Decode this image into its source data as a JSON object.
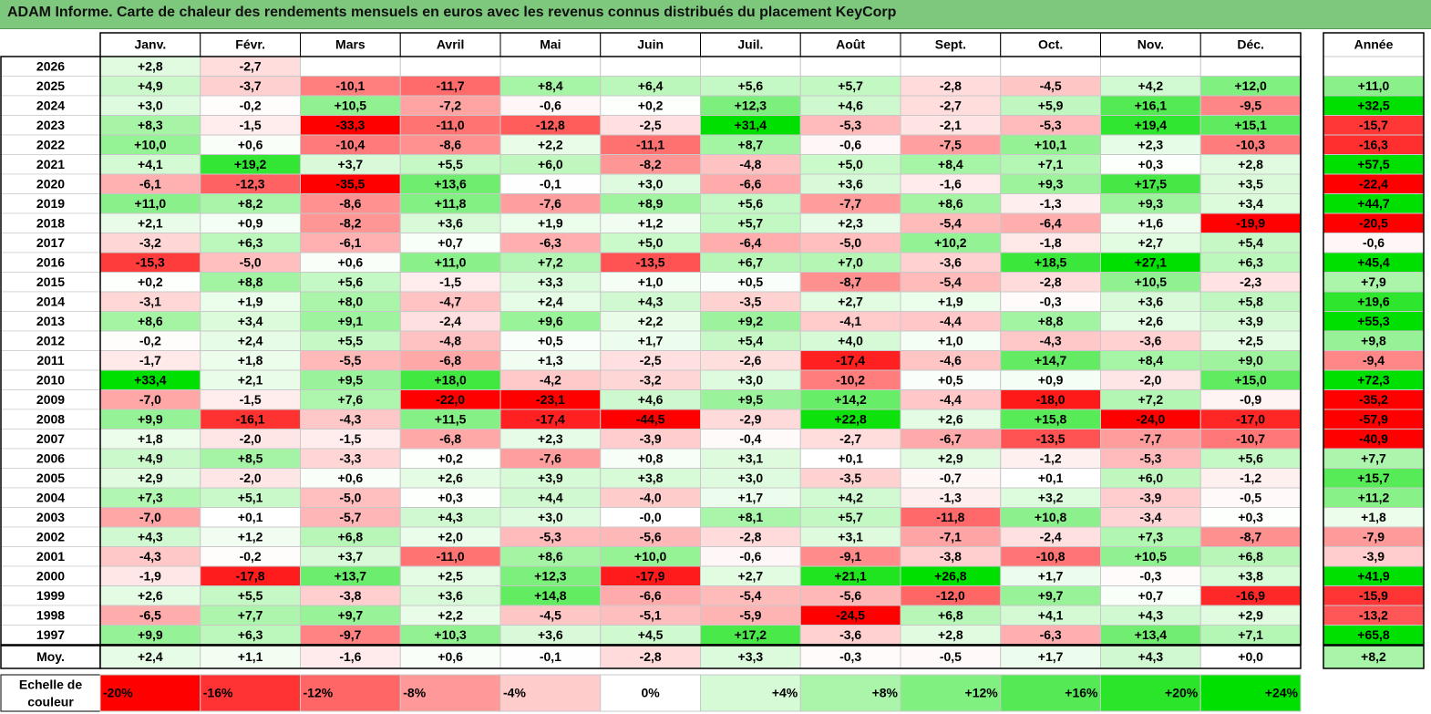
{
  "title": "ADAM Informe. Carte de chaleur des rendements mensuels en euros avec les revenus connus distribués du placement KeyCorp",
  "chart_data": {
    "type": "heatmap",
    "columns": [
      "Janv.",
      "Févr.",
      "Mars",
      "Avril",
      "Mai",
      "Juin",
      "Juil.",
      "Août",
      "Sept.",
      "Oct.",
      "Nov.",
      "Déc."
    ],
    "year_column_header": "Année",
    "rows": [
      {
        "year": "2026",
        "values": [
          "+2,8",
          "-2,7",
          "",
          "",
          "",
          "",
          "",
          "",
          "",
          "",
          "",
          ""
        ],
        "annual": ""
      },
      {
        "year": "2025",
        "values": [
          "+4,9",
          "-3,7",
          "-10,1",
          "-11,7",
          "+8,4",
          "+6,4",
          "+5,6",
          "+5,7",
          "-2,8",
          "-4,5",
          "+4,2",
          "+12,0"
        ],
        "annual": "+11,0"
      },
      {
        "year": "2024",
        "values": [
          "+3,0",
          "-0,2",
          "+10,5",
          "-7,2",
          "-0,6",
          "+0,2",
          "+12,3",
          "+4,6",
          "-2,7",
          "+5,9",
          "+16,1",
          "-9,5"
        ],
        "annual": "+32,5"
      },
      {
        "year": "2023",
        "values": [
          "+8,3",
          "-1,5",
          "-33,3",
          "-11,0",
          "-12,8",
          "-2,5",
          "+31,4",
          "-5,3",
          "-2,1",
          "-5,3",
          "+19,4",
          "+15,1"
        ],
        "annual": "-15,7"
      },
      {
        "year": "2022",
        "values": [
          "+10,0",
          "+0,6",
          "-10,4",
          "-8,6",
          "+2,2",
          "-11,1",
          "+8,7",
          "-0,6",
          "-7,5",
          "+10,1",
          "+2,3",
          "-10,3"
        ],
        "annual": "-16,3"
      },
      {
        "year": "2021",
        "values": [
          "+4,1",
          "+19,2",
          "+3,7",
          "+5,5",
          "+6,0",
          "-8,2",
          "-4,8",
          "+5,0",
          "+8,4",
          "+7,1",
          "+0,3",
          "+2,8"
        ],
        "annual": "+57,5"
      },
      {
        "year": "2020",
        "values": [
          "-6,1",
          "-12,3",
          "-35,5",
          "+13,6",
          "-0,1",
          "+3,0",
          "-6,6",
          "+3,6",
          "-1,6",
          "+9,3",
          "+17,5",
          "+3,5"
        ],
        "annual": "-22,4"
      },
      {
        "year": "2019",
        "values": [
          "+11,0",
          "+8,2",
          "-8,6",
          "+11,8",
          "-7,6",
          "+8,9",
          "+5,6",
          "-7,7",
          "+8,6",
          "-1,3",
          "+9,3",
          "+3,4"
        ],
        "annual": "+44,7"
      },
      {
        "year": "2018",
        "values": [
          "+2,1",
          "+0,9",
          "-8,2",
          "+3,6",
          "+1,9",
          "+1,2",
          "+5,7",
          "+2,3",
          "-5,4",
          "-6,4",
          "+1,6",
          "-19,9"
        ],
        "annual": "-20,5"
      },
      {
        "year": "2017",
        "values": [
          "-3,2",
          "+6,3",
          "-6,1",
          "+0,7",
          "-6,3",
          "+5,0",
          "-6,4",
          "-5,0",
          "+10,2",
          "-1,8",
          "+2,7",
          "+5,4"
        ],
        "annual": "-0,6"
      },
      {
        "year": "2016",
        "values": [
          "-15,3",
          "-5,0",
          "+0,6",
          "+11,0",
          "+7,2",
          "-13,5",
          "+6,7",
          "+7,0",
          "-3,6",
          "+18,5",
          "+27,1",
          "+6,3"
        ],
        "annual": "+45,4"
      },
      {
        "year": "2015",
        "values": [
          "+0,2",
          "+8,8",
          "+5,6",
          "-1,5",
          "+3,3",
          "+1,0",
          "+0,5",
          "-8,7",
          "-5,4",
          "-2,8",
          "+10,5",
          "-2,3"
        ],
        "annual": "+7,9"
      },
      {
        "year": "2014",
        "values": [
          "-3,1",
          "+1,9",
          "+8,0",
          "-4,7",
          "+2,4",
          "+4,3",
          "-3,5",
          "+2,7",
          "+1,9",
          "-0,3",
          "+3,6",
          "+5,8"
        ],
        "annual": "+19,6"
      },
      {
        "year": "2013",
        "values": [
          "+8,6",
          "+3,4",
          "+9,1",
          "-2,4",
          "+9,6",
          "+2,2",
          "+9,2",
          "-4,1",
          "-4,4",
          "+8,8",
          "+2,6",
          "+3,9"
        ],
        "annual": "+55,3"
      },
      {
        "year": "2012",
        "values": [
          "-0,2",
          "+2,4",
          "+5,5",
          "-4,8",
          "+0,5",
          "+1,7",
          "+5,4",
          "+4,0",
          "+1,0",
          "-4,3",
          "-3,6",
          "+2,5"
        ],
        "annual": "+9,8"
      },
      {
        "year": "2011",
        "values": [
          "-1,7",
          "+1,8",
          "-5,5",
          "-6,8",
          "+1,3",
          "-2,5",
          "-2,6",
          "-17,4",
          "-4,6",
          "+14,7",
          "+8,4",
          "+9,0"
        ],
        "annual": "-9,4"
      },
      {
        "year": "2010",
        "values": [
          "+33,4",
          "+2,1",
          "+9,5",
          "+18,0",
          "-4,2",
          "-3,2",
          "+3,0",
          "-10,2",
          "+0,5",
          "+0,9",
          "-2,0",
          "+15,0"
        ],
        "annual": "+72,3"
      },
      {
        "year": "2009",
        "values": [
          "-7,0",
          "-1,5",
          "+7,6",
          "-22,0",
          "-23,1",
          "+4,6",
          "+9,5",
          "+14,2",
          "-4,4",
          "-18,0",
          "+7,2",
          "-0,9"
        ],
        "annual": "-35,2"
      },
      {
        "year": "2008",
        "values": [
          "+9,9",
          "-16,1",
          "-4,3",
          "+11,5",
          "-17,4",
          "-44,5",
          "-2,9",
          "+22,8",
          "+2,6",
          "+15,8",
          "-24,0",
          "-17,0"
        ],
        "annual": "-57,9"
      },
      {
        "year": "2007",
        "values": [
          "+1,8",
          "-2,0",
          "-1,5",
          "-6,8",
          "+2,3",
          "-3,9",
          "-0,4",
          "-2,7",
          "-6,7",
          "-13,5",
          "-7,7",
          "-10,7"
        ],
        "annual": "-40,9"
      },
      {
        "year": "2006",
        "values": [
          "+4,9",
          "+8,5",
          "-3,3",
          "+0,2",
          "-7,6",
          "+0,8",
          "+3,1",
          "+0,1",
          "+2,9",
          "-1,2",
          "-5,3",
          "+5,6"
        ],
        "annual": "+7,7"
      },
      {
        "year": "2005",
        "values": [
          "+2,9",
          "-2,0",
          "+0,6",
          "+2,6",
          "+3,9",
          "+3,8",
          "+3,0",
          "-3,5",
          "-0,7",
          "+0,1",
          "+6,0",
          "-1,2"
        ],
        "annual": "+15,7"
      },
      {
        "year": "2004",
        "values": [
          "+7,3",
          "+5,1",
          "-5,0",
          "+0,3",
          "+4,4",
          "-4,0",
          "+1,7",
          "+4,2",
          "-1,3",
          "+3,2",
          "-3,9",
          "-0,5"
        ],
        "annual": "+11,2"
      },
      {
        "year": "2003",
        "values": [
          "-7,0",
          "+0,1",
          "-5,7",
          "+4,3",
          "+3,0",
          "-0,0",
          "+8,1",
          "+5,7",
          "-11,8",
          "+10,8",
          "-3,4",
          "+0,3"
        ],
        "annual": "+1,8"
      },
      {
        "year": "2002",
        "values": [
          "+4,3",
          "+1,2",
          "+6,8",
          "+2,0",
          "-5,3",
          "-5,6",
          "-2,8",
          "+3,1",
          "-7,1",
          "-2,4",
          "+7,3",
          "-8,7"
        ],
        "annual": "-7,9"
      },
      {
        "year": "2001",
        "values": [
          "-4,3",
          "-0,2",
          "+3,7",
          "-11,0",
          "+8,6",
          "+10,0",
          "-0,6",
          "-9,1",
          "-3,8",
          "-10,8",
          "+10,5",
          "+6,8"
        ],
        "annual": "-3,9"
      },
      {
        "year": "2000",
        "values": [
          "-1,9",
          "-17,8",
          "+13,7",
          "+2,5",
          "+12,3",
          "-17,9",
          "+2,7",
          "+21,1",
          "+26,8",
          "+1,7",
          "-0,3",
          "+3,8"
        ],
        "annual": "+41,9"
      },
      {
        "year": "1999",
        "values": [
          "+2,6",
          "+5,5",
          "-3,8",
          "+3,6",
          "+14,8",
          "-6,6",
          "-5,4",
          "-5,6",
          "-12,0",
          "+9,7",
          "+0,7",
          "-16,9"
        ],
        "annual": "-15,9"
      },
      {
        "year": "1998",
        "values": [
          "-6,5",
          "+7,7",
          "+9,7",
          "+2,2",
          "-4,5",
          "-5,1",
          "-5,9",
          "-24,5",
          "+6,8",
          "+4,1",
          "+4,3",
          "+2,9"
        ],
        "annual": "-13,2"
      },
      {
        "year": "1997",
        "values": [
          "+9,9",
          "+6,3",
          "-9,7",
          "+10,3",
          "+3,6",
          "+4,5",
          "+17,2",
          "-3,6",
          "+2,8",
          "-6,3",
          "+13,4",
          "+7,1"
        ],
        "annual": "+65,8"
      }
    ],
    "average": {
      "label": "Moy.",
      "values": [
        "+2,4",
        "+1,1",
        "-1,6",
        "+0,6",
        "-0,1",
        "-2,8",
        "+3,3",
        "-0,3",
        "-0,5",
        "+1,7",
        "+4,3",
        "+0,0"
      ],
      "annual": "+8,2"
    },
    "color_scale": {
      "label_line1": "Echelle de",
      "label_line2": "couleur",
      "stops": [
        "-20%",
        "-16%",
        "-12%",
        "-8%",
        "-4%",
        "0%",
        "+4%",
        "+8%",
        "+12%",
        "+16%",
        "+20%",
        "+24%"
      ],
      "negative_color": "#ff0000",
      "positive_color": "#00e000",
      "neutral_color": "#ffffff"
    }
  }
}
